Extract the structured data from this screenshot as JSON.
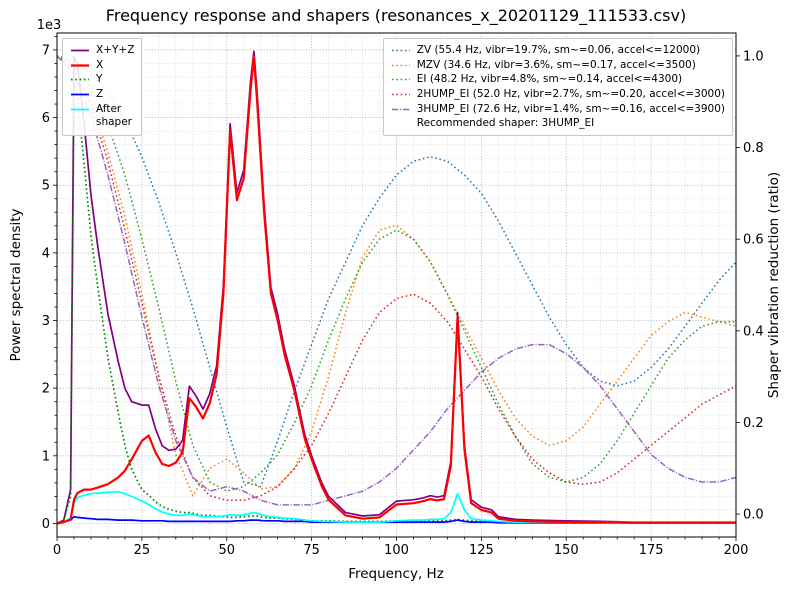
{
  "chart_data": {
    "type": "line",
    "title": "Frequency response and shapers (resonances_x_20201129_111533.csv)",
    "xlabel": "Frequency, Hz",
    "ylabel_left": "Power spectral density",
    "ylabel_right": "Shaper vibration reduction (ratio)",
    "y_left_multiplier": "1e3",
    "grid": "on",
    "legend_psd_position": "upper left",
    "legend_shapers_position": "upper right",
    "x_axis": {
      "lim": [
        0,
        200
      ],
      "major_ticks": [
        0,
        25,
        50,
        75,
        100,
        125,
        150,
        175,
        200
      ],
      "tick_labels": [
        "0",
        "25",
        "50",
        "75",
        "100",
        "125",
        "150",
        "175",
        "200"
      ],
      "minor_step": 5
    },
    "y_left_axis": {
      "lim": [
        -0.2,
        7.25
      ],
      "major_ticks": [
        0,
        1,
        2,
        3,
        4,
        5,
        6,
        7
      ],
      "tick_labels": [
        "0",
        "1",
        "2",
        "3",
        "4",
        "5",
        "6",
        "7"
      ],
      "minor_step": 0.2,
      "unit_multiplier": 1000
    },
    "y_right_axis": {
      "lim": [
        -0.05,
        1.05
      ],
      "major_ticks": [
        0,
        0.2,
        0.4,
        0.6,
        0.8,
        1.0
      ],
      "tick_labels": [
        "0.0",
        "0.2",
        "0.4",
        "0.6",
        "0.8",
        "1.0"
      ]
    },
    "x_psd": [
      0,
      2,
      4,
      5,
      6,
      8,
      10,
      12,
      15,
      18,
      20,
      22,
      25,
      27,
      29,
      31,
      33,
      35,
      37,
      39,
      41,
      43,
      45,
      47,
      49,
      51,
      53,
      55,
      57,
      58,
      59,
      61,
      63,
      65,
      67,
      70,
      73,
      75,
      78,
      80,
      85,
      90,
      95,
      100,
      105,
      108,
      110,
      112,
      114,
      116,
      118,
      120,
      122,
      125,
      128,
      130,
      135,
      140,
      150,
      160,
      170,
      180,
      190,
      200
    ],
    "psd_values_unit": "1e3",
    "psd_series": [
      {
        "name": "X+Y+Z",
        "color": "#800080",
        "linestyle": "solid",
        "values": [
          0,
          0.05,
          0.5,
          6.9,
          6.8,
          5.9,
          4.85,
          4.1,
          3.1,
          2.4,
          2.0,
          1.8,
          1.75,
          1.75,
          1.4,
          1.15,
          1.08,
          1.1,
          1.23,
          2.03,
          1.88,
          1.69,
          1.92,
          2.33,
          3.52,
          5.91,
          4.89,
          5.22,
          6.53,
          6.98,
          6.33,
          4.71,
          3.49,
          3.09,
          2.58,
          2.02,
          1.31,
          1.0,
          0.6,
          0.4,
          0.16,
          0.11,
          0.13,
          0.33,
          0.35,
          0.38,
          0.41,
          0.39,
          0.41,
          0.91,
          3.12,
          1.16,
          0.35,
          0.24,
          0.2,
          0.1,
          0.06,
          0.05,
          0.04,
          0.03,
          0.02,
          0.02,
          0.02,
          0.02
        ]
      },
      {
        "name": "X",
        "color": "#ff0000",
        "linestyle": "solid",
        "values": [
          0,
          0.02,
          0.06,
          0.35,
          0.45,
          0.5,
          0.5,
          0.53,
          0.58,
          0.68,
          0.78,
          0.95,
          1.22,
          1.3,
          1.05,
          0.88,
          0.85,
          0.9,
          1.05,
          1.85,
          1.72,
          1.55,
          1.78,
          2.2,
          3.4,
          5.8,
          4.78,
          5.1,
          6.4,
          6.9,
          6.2,
          4.6,
          3.4,
          3.0,
          2.5,
          1.95,
          1.25,
          0.95,
          0.55,
          0.35,
          0.12,
          0.07,
          0.09,
          0.28,
          0.3,
          0.33,
          0.36,
          0.34,
          0.36,
          0.85,
          3.05,
          1.1,
          0.3,
          0.2,
          0.16,
          0.07,
          0.04,
          0.03,
          0.02,
          0.02,
          0.01,
          0.01,
          0.01,
          0.01
        ]
      },
      {
        "name": "Y",
        "color": "#008000",
        "linestyle": "dotted",
        "values": [
          0,
          0.05,
          0.4,
          6.5,
          6.3,
          5.3,
          4.25,
          3.5,
          2.45,
          1.65,
          1.15,
          0.8,
          0.5,
          0.42,
          0.32,
          0.25,
          0.21,
          0.18,
          0.16,
          0.16,
          0.14,
          0.12,
          0.12,
          0.11,
          0.1,
          0.09,
          0.09,
          0.1,
          0.11,
          0.11,
          0.11,
          0.09,
          0.08,
          0.08,
          0.07,
          0.06,
          0.05,
          0.04,
          0.04,
          0.04,
          0.03,
          0.03,
          0.03,
          0.04,
          0.04,
          0.04,
          0.04,
          0.04,
          0.04,
          0.05,
          0.06,
          0.05,
          0.04,
          0.03,
          0.03,
          0.02,
          0.02,
          0.02,
          0.01,
          0.01,
          0.01,
          0.01,
          0.01,
          0.01
        ]
      },
      {
        "name": "Z",
        "color": "#0000ff",
        "linestyle": "solid",
        "values": [
          0,
          0.02,
          0.05,
          0.1,
          0.09,
          0.08,
          0.07,
          0.06,
          0.06,
          0.05,
          0.05,
          0.05,
          0.04,
          0.04,
          0.04,
          0.04,
          0.03,
          0.03,
          0.03,
          0.03,
          0.03,
          0.03,
          0.03,
          0.03,
          0.03,
          0.03,
          0.04,
          0.04,
          0.05,
          0.05,
          0.05,
          0.04,
          0.04,
          0.04,
          0.03,
          0.03,
          0.03,
          0.02,
          0.02,
          0.02,
          0.02,
          0.02,
          0.02,
          0.02,
          0.02,
          0.02,
          0.02,
          0.02,
          0.02,
          0.03,
          0.05,
          0.03,
          0.02,
          0.02,
          0.02,
          0.01,
          0.01,
          0.01,
          0.01,
          0.01,
          0.01,
          0.01,
          0.01,
          0.01
        ]
      },
      {
        "name": "After shaper",
        "legend": "After\nshaper",
        "color": "#00ffff",
        "linestyle": "solid",
        "values": [
          0,
          0.02,
          0.08,
          0.3,
          0.38,
          0.42,
          0.44,
          0.45,
          0.46,
          0.47,
          0.44,
          0.4,
          0.33,
          0.28,
          0.22,
          0.17,
          0.14,
          0.12,
          0.12,
          0.14,
          0.12,
          0.1,
          0.1,
          0.1,
          0.11,
          0.13,
          0.12,
          0.13,
          0.15,
          0.16,
          0.15,
          0.12,
          0.1,
          0.09,
          0.08,
          0.07,
          0.05,
          0.04,
          0.03,
          0.03,
          0.02,
          0.02,
          0.02,
          0.04,
          0.05,
          0.05,
          0.06,
          0.06,
          0.07,
          0.16,
          0.44,
          0.2,
          0.07,
          0.05,
          0.04,
          0.03,
          0.02,
          0.02,
          0.02,
          0.02,
          0.02,
          0.02,
          0.02,
          0.02
        ]
      }
    ],
    "x_shaper": [
      0,
      5,
      10,
      15,
      20,
      25,
      30,
      35,
      40,
      45,
      50,
      55,
      60,
      65,
      70,
      75,
      80,
      85,
      90,
      95,
      100,
      105,
      110,
      115,
      120,
      125,
      130,
      135,
      140,
      145,
      150,
      155,
      160,
      165,
      170,
      175,
      180,
      185,
      190,
      195,
      200
    ],
    "shaper_series": [
      {
        "name": "ZV",
        "label": "ZV (55.4 Hz, vibr=19.7%, sm~=0.06, accel<=12000)",
        "color": "#1f77b4",
        "linestyle": "dotted",
        "values": [
          1.0,
          0.99,
          0.96,
          0.92,
          0.86,
          0.78,
          0.68,
          0.57,
          0.45,
          0.32,
          0.19,
          0.07,
          0.06,
          0.16,
          0.27,
          0.37,
          0.47,
          0.55,
          0.63,
          0.69,
          0.74,
          0.77,
          0.78,
          0.77,
          0.74,
          0.7,
          0.64,
          0.57,
          0.5,
          0.43,
          0.37,
          0.32,
          0.29,
          0.28,
          0.29,
          0.32,
          0.36,
          0.41,
          0.46,
          0.51,
          0.55
        ]
      },
      {
        "name": "MZV",
        "label": "MZV (34.6 Hz, vibr=3.6%, sm~=0.17, accel<=3500)",
        "color": "#ff7f0e",
        "linestyle": "dotted",
        "values": [
          1.0,
          0.97,
          0.9,
          0.79,
          0.65,
          0.48,
          0.3,
          0.13,
          0.04,
          0.1,
          0.12,
          0.09,
          0.055,
          0.06,
          0.1,
          0.18,
          0.3,
          0.44,
          0.56,
          0.62,
          0.63,
          0.6,
          0.55,
          0.48,
          0.41,
          0.34,
          0.27,
          0.21,
          0.17,
          0.15,
          0.16,
          0.19,
          0.24,
          0.29,
          0.34,
          0.39,
          0.42,
          0.44,
          0.43,
          0.42,
          0.41
        ]
      },
      {
        "name": "EI",
        "label": "EI (48.2 Hz, vibr=4.8%, sm~=0.14, accel<=4300)",
        "color": "#2ca02c",
        "linestyle": "dotted",
        "values": [
          1.0,
          0.98,
          0.93,
          0.85,
          0.74,
          0.6,
          0.45,
          0.29,
          0.15,
          0.07,
          0.05,
          0.06,
          0.09,
          0.13,
          0.2,
          0.28,
          0.38,
          0.47,
          0.55,
          0.6,
          0.62,
          0.6,
          0.55,
          0.48,
          0.4,
          0.32,
          0.24,
          0.17,
          0.11,
          0.08,
          0.07,
          0.08,
          0.11,
          0.16,
          0.22,
          0.28,
          0.34,
          0.38,
          0.41,
          0.42,
          0.42
        ]
      },
      {
        "name": "2HUMP_EI",
        "label": "2HUMP_EI (52.0 Hz, vibr=2.7%, sm~=0.20, accel<=3000)",
        "color": "#d62728",
        "linestyle": "dotted",
        "values": [
          1.0,
          0.97,
          0.89,
          0.77,
          0.62,
          0.46,
          0.3,
          0.17,
          0.08,
          0.04,
          0.03,
          0.03,
          0.04,
          0.06,
          0.1,
          0.15,
          0.22,
          0.3,
          0.38,
          0.44,
          0.47,
          0.48,
          0.46,
          0.42,
          0.36,
          0.3,
          0.23,
          0.17,
          0.12,
          0.09,
          0.07,
          0.065,
          0.07,
          0.09,
          0.12,
          0.15,
          0.18,
          0.21,
          0.24,
          0.26,
          0.28
        ]
      },
      {
        "name": "3HUMP_EI",
        "label": "3HUMP_EI (72.6 Hz, vibr=1.4%, sm~=0.16, accel<=3900)",
        "color": "#9467bd",
        "linestyle": "dashdot",
        "values": [
          1.0,
          0.96,
          0.87,
          0.74,
          0.59,
          0.43,
          0.28,
          0.16,
          0.08,
          0.05,
          0.06,
          0.05,
          0.03,
          0.02,
          0.02,
          0.02,
          0.03,
          0.04,
          0.05,
          0.07,
          0.1,
          0.14,
          0.18,
          0.23,
          0.27,
          0.31,
          0.34,
          0.36,
          0.37,
          0.37,
          0.35,
          0.32,
          0.28,
          0.23,
          0.18,
          0.13,
          0.1,
          0.08,
          0.07,
          0.07,
          0.08
        ]
      }
    ],
    "recommended_label": "Recommended shaper: 3HUMP_EI"
  }
}
